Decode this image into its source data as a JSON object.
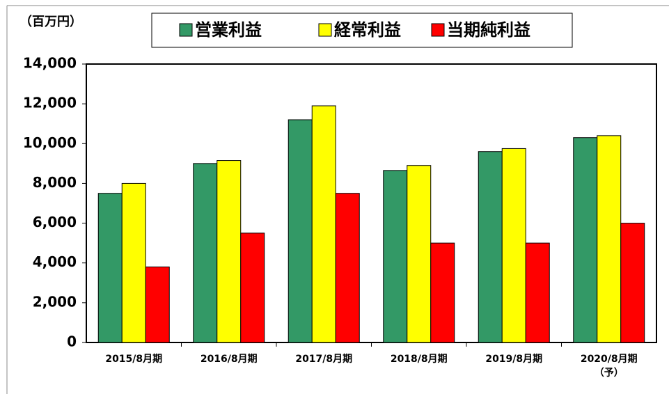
{
  "chart_data": {
    "type": "bar",
    "unit_label": "（百万円）",
    "categories": [
      "2015/8月期",
      "2016/8月期",
      "2017/8月期",
      "2018/8月期",
      "2019/8月期",
      "2020/8月期\n（予）"
    ],
    "series": [
      {
        "name": "営業利益",
        "color": "#339966",
        "values": [
          7500,
          9000,
          11200,
          8650,
          9600,
          10300
        ]
      },
      {
        "name": "経常利益",
        "color": "#ffff00",
        "values": [
          8000,
          9150,
          11900,
          8900,
          9750,
          10400
        ]
      },
      {
        "name": "当期純利益",
        "color": "#ff0000",
        "values": [
          3800,
          5500,
          7500,
          5000,
          5000,
          6000
        ]
      }
    ],
    "ylim": [
      0,
      14000
    ],
    "yticks": [
      0,
      {
        "value": 2000,
        "label": "2,000"
      },
      {
        "value": 4000,
        "label": "4,000"
      },
      {
        "value": 6000,
        "label": "6,000"
      },
      {
        "value": 8000,
        "label": "8,000"
      },
      {
        "value": 10000,
        "label": "10,000"
      },
      {
        "value": 12000,
        "label": "12,000"
      },
      {
        "value": 14000,
        "label": "14,000"
      }
    ],
    "grid": false,
    "legend": "top"
  }
}
